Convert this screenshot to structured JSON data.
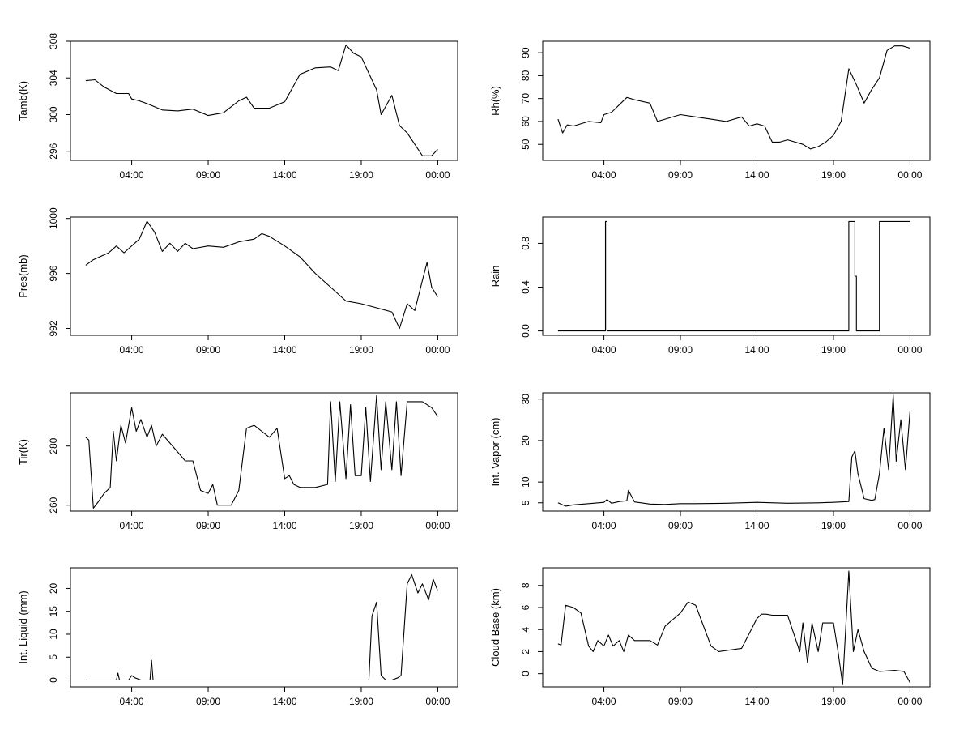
{
  "chart_data": [
    {
      "type": "line",
      "ylabel": "Tamb(K)",
      "xlabel": "",
      "x_ticks": [
        "04:00",
        "09:00",
        "14:00",
        "19:00",
        "00:00"
      ],
      "y_ticks": [
        296,
        300,
        304,
        308
      ],
      "ylim": [
        295,
        308
      ],
      "xlim": [
        0,
        25.3
      ],
      "series": [
        {
          "x": [
            1,
            1.6,
            2.2,
            3,
            3.8,
            4,
            4.5,
            5,
            6,
            7,
            8,
            9,
            10,
            11,
            11.5,
            12,
            13,
            14,
            15,
            16,
            17,
            17.5,
            18,
            18.5,
            19,
            19.5,
            20,
            20.3,
            21,
            21.5,
            22,
            23,
            23.6,
            24
          ],
          "y": [
            303.7,
            303.8,
            303,
            302.3,
            302.3,
            301.7,
            301.5,
            301.2,
            300.5,
            300.4,
            300.6,
            299.9,
            300.2,
            301.5,
            301.9,
            300.7,
            300.7,
            301.4,
            304.4,
            305.1,
            305.2,
            304.8,
            307.6,
            306.7,
            306.3,
            304.5,
            302.7,
            300,
            302.1,
            298.8,
            298,
            295.5,
            295.5,
            296.2
          ]
        }
      ]
    },
    {
      "type": "line",
      "ylabel": "Rh(%)",
      "xlabel": "",
      "x_ticks": [
        "04:00",
        "09:00",
        "14:00",
        "19:00",
        "00:00"
      ],
      "y_ticks": [
        50,
        60,
        70,
        80,
        90
      ],
      "ylim": [
        43,
        95
      ],
      "xlim": [
        0,
        25.3
      ],
      "series": [
        {
          "x": [
            1,
            1.3,
            1.6,
            2,
            3,
            3.8,
            4,
            4.5,
            5.5,
            6,
            7,
            7.5,
            8,
            9,
            10,
            11,
            12,
            13,
            13.5,
            14,
            14.5,
            15,
            15.5,
            16,
            17,
            17.5,
            18,
            18.5,
            19,
            19.5,
            20,
            20.5,
            21,
            21.5,
            22,
            22.5,
            23,
            23.5,
            24
          ],
          "y": [
            61,
            55,
            58.5,
            58,
            60,
            59.5,
            63,
            64,
            70.5,
            69.5,
            68,
            60,
            61,
            63,
            62,
            61,
            60,
            62,
            58,
            59,
            58,
            51,
            51,
            52,
            50,
            48,
            49,
            51,
            54,
            60,
            83,
            76,
            68,
            74,
            79,
            91,
            93,
            93,
            92
          ]
        }
      ]
    },
    {
      "type": "line",
      "ylabel": "Pres(mb)",
      "xlabel": "",
      "x_ticks": [
        "04:00",
        "09:00",
        "14:00",
        "19:00",
        "00:00"
      ],
      "y_ticks": [
        992,
        996,
        1000
      ],
      "ylim": [
        991.5,
        1000.1
      ],
      "xlim": [
        0,
        25.3
      ],
      "series": [
        {
          "x": [
            1,
            1.5,
            2.5,
            3,
            3.5,
            4.5,
            5,
            5.5,
            6,
            6.5,
            7,
            7.5,
            8,
            9,
            10,
            11,
            12,
            12.5,
            13,
            14,
            15,
            16,
            17,
            18,
            19,
            20,
            21,
            21.5,
            22,
            22.5,
            23,
            23.3,
            23.6,
            24
          ],
          "y": [
            996.6,
            997,
            997.5,
            998,
            997.5,
            998.5,
            999.8,
            999,
            997.6,
            998.2,
            997.6,
            998.2,
            997.8,
            998,
            997.9,
            998.3,
            998.5,
            998.9,
            998.7,
            998,
            997.2,
            996,
            995,
            994,
            993.8,
            993.5,
            993.2,
            992,
            993.8,
            993.3,
            995.5,
            996.8,
            995,
            994.3
          ]
        }
      ]
    },
    {
      "type": "line",
      "ylabel": "Rain",
      "xlabel": "",
      "x_ticks": [
        "04:00",
        "09:00",
        "14:00",
        "19:00",
        "00:00"
      ],
      "y_ticks": [
        "0.0",
        "0.4",
        "0.8"
      ],
      "ylim": [
        -0.04,
        1.04
      ],
      "xlim": [
        0,
        25.3
      ],
      "series": [
        {
          "x": [
            1,
            4.1,
            4.1,
            4.2,
            4.2,
            20,
            20,
            20.4,
            20.4,
            20.5,
            20.5,
            22,
            22,
            24
          ],
          "y": [
            0,
            0,
            1,
            1,
            0,
            0,
            1,
            1,
            0.5,
            0.5,
            0,
            0,
            1,
            1
          ]
        }
      ]
    },
    {
      "type": "line",
      "ylabel": "Tir(K)",
      "xlabel": "",
      "x_ticks": [
        "04:00",
        "09:00",
        "14:00",
        "19:00",
        "00:00"
      ],
      "y_ticks": [
        260,
        280
      ],
      "ylim": [
        258,
        298
      ],
      "xlim": [
        0,
        25.3
      ],
      "series": [
        {
          "x": [
            1,
            1.2,
            1.5,
            1.8,
            2.2,
            2.6,
            2.8,
            3,
            3.3,
            3.6,
            4,
            4.3,
            4.6,
            5,
            5.3,
            5.6,
            6,
            6.5,
            7,
            7.5,
            8,
            8.5,
            9,
            9.3,
            9.6,
            10,
            10.5,
            11,
            11.5,
            12,
            12.5,
            13,
            13.5,
            14,
            14.3,
            14.6,
            15,
            16,
            16.8,
            17,
            17.3,
            17.6,
            18,
            18.3,
            18.6,
            19,
            19.3,
            19.6,
            20,
            20.3,
            20.6,
            21,
            21.3,
            21.6,
            22,
            23,
            23.6,
            24
          ],
          "y": [
            283,
            282,
            259,
            261,
            264,
            266,
            285,
            275,
            287,
            281,
            293,
            285,
            289,
            283,
            287,
            280,
            284,
            281,
            278,
            275,
            275,
            265,
            264,
            267,
            260,
            260,
            260,
            265,
            286,
            287,
            285,
            283,
            286,
            269,
            270,
            267,
            266,
            266,
            267,
            295,
            268,
            295,
            269,
            294,
            270,
            270,
            293,
            268,
            297,
            272,
            295,
            272,
            295,
            270,
            295,
            295,
            293,
            290
          ]
        }
      ]
    },
    {
      "type": "line",
      "ylabel": "Int. Vapor (cm)",
      "xlabel": "",
      "x_ticks": [
        "04:00",
        "09:00",
        "14:00",
        "19:00",
        "00:00"
      ],
      "y_ticks": [
        5,
        10,
        20,
        30
      ],
      "ylim": [
        3,
        31.5
      ],
      "xlim": [
        0,
        25.3
      ],
      "series": [
        {
          "x": [
            1,
            1.5,
            2,
            3,
            4,
            4.2,
            4.5,
            5,
            5.5,
            5.6,
            6,
            7,
            8,
            9,
            10,
            12,
            14,
            16,
            18,
            19,
            20,
            20.2,
            20.4,
            20.6,
            21,
            21.5,
            21.7,
            22,
            22.3,
            22.6,
            22.9,
            23.1,
            23.4,
            23.7,
            24
          ],
          "y": [
            5,
            4.2,
            4.5,
            4.8,
            5.1,
            5.8,
            4.9,
            5.3,
            5.5,
            8,
            5.2,
            4.7,
            4.6,
            4.8,
            4.8,
            4.9,
            5.1,
            4.9,
            5,
            5.1,
            5.3,
            16,
            17.5,
            12,
            6,
            5.6,
            5.8,
            12,
            23,
            13,
            31,
            15,
            25,
            13,
            27
          ]
        }
      ]
    },
    {
      "type": "line",
      "ylabel": "Int. Liquid (mm)",
      "xlabel": "",
      "x_ticks": [
        "04:00",
        "09:00",
        "14:00",
        "19:00",
        "00:00"
      ],
      "y_ticks": [
        0,
        5,
        10,
        15,
        20
      ],
      "ylim": [
        -1.5,
        24.5
      ],
      "xlim": [
        0,
        25.3
      ],
      "series": [
        {
          "x": [
            1,
            2,
            3,
            3.1,
            3.2,
            3.8,
            4,
            4.2,
            4.6,
            5.2,
            5.3,
            5.4,
            6,
            10,
            14,
            18,
            19.5,
            19.7,
            20,
            20.3,
            20.6,
            21,
            21.4,
            21.6,
            22,
            22.3,
            22.7,
            23,
            23.4,
            23.7,
            24
          ],
          "y": [
            0,
            0,
            0,
            1.5,
            0,
            0,
            1,
            0.5,
            0,
            0,
            4.3,
            0,
            0,
            0,
            0,
            0,
            0,
            14,
            17,
            1,
            0,
            0,
            0.5,
            1,
            21,
            23,
            19,
            21,
            17.5,
            22,
            19.5
          ]
        }
      ]
    },
    {
      "type": "line",
      "ylabel": "Cloud Base (km)",
      "xlabel": "",
      "x_ticks": [
        "04:00",
        "09:00",
        "14:00",
        "19:00",
        "00:00"
      ],
      "y_ticks": [
        0,
        2,
        4,
        6,
        8
      ],
      "ylim": [
        -1.2,
        9.6
      ],
      "xlim": [
        0,
        25.3
      ],
      "series": [
        {
          "x": [
            1,
            1.2,
            1.5,
            2,
            2.5,
            3,
            3.3,
            3.6,
            4,
            4.3,
            4.6,
            5,
            5.3,
            5.6,
            6,
            7,
            7.5,
            8,
            9,
            9.5,
            10,
            11,
            11.5,
            12,
            13,
            14,
            14.3,
            14.6,
            15,
            16,
            16.8,
            17,
            17.3,
            17.6,
            18,
            18.3,
            18.6,
            19,
            19.3,
            19.6,
            20,
            20.3,
            20.6,
            21,
            21.5,
            22,
            23,
            23.6,
            24
          ],
          "y": [
            2.7,
            2.6,
            6.2,
            6,
            5.5,
            2.5,
            2,
            3,
            2.5,
            3.5,
            2.5,
            3,
            2,
            3.5,
            3,
            3,
            2.6,
            4.3,
            5.5,
            6.5,
            6.2,
            2.5,
            2,
            2.1,
            2.3,
            5,
            5.4,
            5.4,
            5.3,
            5.3,
            2,
            4.6,
            1,
            4.6,
            2,
            4.6,
            4.6,
            4.6,
            2,
            -1,
            9.3,
            2,
            4,
            2,
            0.5,
            0.2,
            0.3,
            0.2,
            -0.8
          ]
        }
      ]
    }
  ]
}
